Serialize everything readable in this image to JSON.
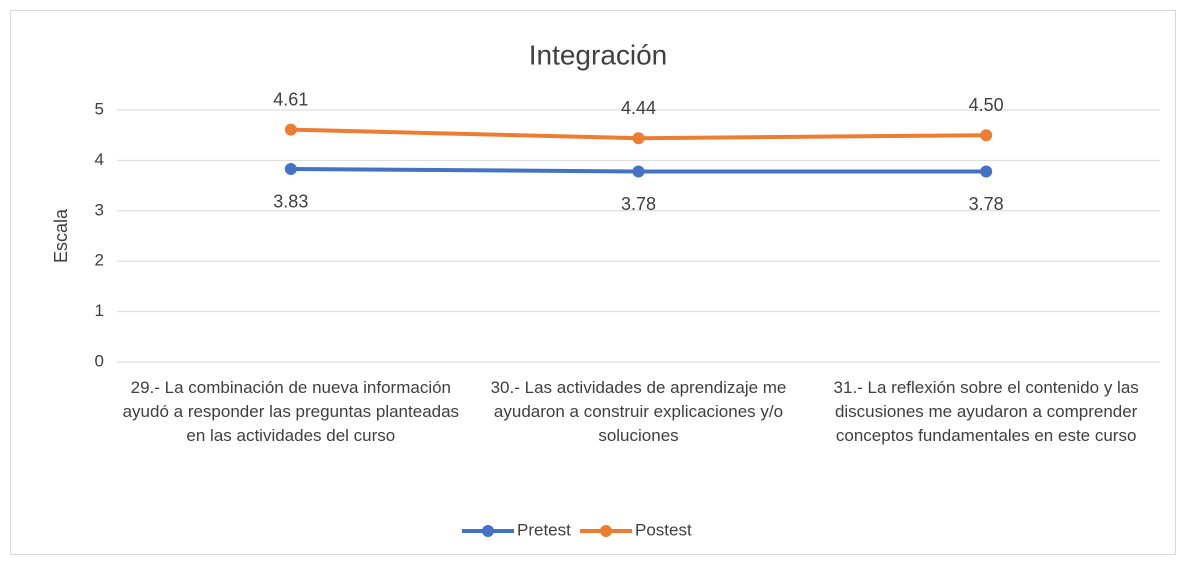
{
  "chart_data": {
    "type": "line",
    "title": "Integración",
    "y_label": "Escala",
    "categories": [
      "29.- La combinación de nueva información ayudó a responder las preguntas planteadas en las actividades del curso",
      "30.- Las actividades de aprendizaje me ayudaron a construir explicaciones y/o soluciones",
      "31.- La reflexión sobre el contenido y las discusiones me ayudaron a comprender conceptos fundamentales en este curso"
    ],
    "series": [
      {
        "name": "Pretest",
        "color": "#4472c4",
        "values": [
          3.83,
          3.78,
          3.78
        ],
        "value_labels": [
          "3.83",
          "3.78",
          "3.78"
        ]
      },
      {
        "name": "Postest",
        "color": "#ed7d31",
        "values": [
          4.61,
          4.44,
          4.5
        ],
        "value_labels": [
          "4.61",
          "4.44",
          "4.50"
        ]
      }
    ],
    "ylim": [
      0,
      5
    ],
    "yticks": [
      0,
      1,
      2,
      3,
      4,
      5
    ],
    "grid": true,
    "legend": "bottom"
  }
}
